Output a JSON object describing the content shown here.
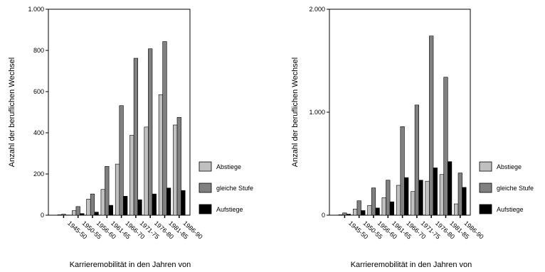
{
  "chart_data": [
    {
      "type": "bar",
      "ylabel": "Anzahl der beruflichen Wechsel",
      "xlabel": "Karrieremobilität in den Jahren von",
      "ylim": [
        0,
        1000
      ],
      "yticks": [
        0,
        200,
        400,
        600,
        800,
        1000
      ],
      "ytick_labels": [
        "0",
        "200",
        "400",
        "600",
        "800",
        "1.000"
      ],
      "legend_position": "right",
      "categories": [
        "1945-50",
        "1950-55",
        "1956-60",
        "1961-65",
        "1966-70",
        "1971-75",
        "1976-80",
        "1981-85",
        "1986-90"
      ],
      "series": [
        {
          "name": "Abstiege",
          "color": "#c0c0c0",
          "values": [
            2,
            22,
            78,
            125,
            248,
            388,
            428,
            585,
            438
          ]
        },
        {
          "name": "gleiche Stufe",
          "color": "#808080",
          "values": [
            5,
            42,
            103,
            237,
            532,
            762,
            808,
            843,
            475
          ]
        },
        {
          "name": "Aufstiege",
          "color": "#000000",
          "values": [
            1,
            8,
            15,
            48,
            92,
            75,
            103,
            132,
            120
          ]
        }
      ]
    },
    {
      "type": "bar",
      "ylabel": "Anzahl der beruflichen Wechsel",
      "xlabel": "Karrieremobilität in den Jahren von",
      "ylim": [
        0,
        2000
      ],
      "yticks": [
        0,
        1000,
        2000
      ],
      "ytick_labels": [
        "0",
        "1.000",
        "2.000"
      ],
      "legend_position": "right",
      "categories": [
        "1945-50",
        "1950-55",
        "1956-60",
        "1961-65",
        "1966-70",
        "1971-75",
        "1976-80",
        "1981-85",
        "1986-90"
      ],
      "series": [
        {
          "name": "Abstiege",
          "color": "#c0c0c0",
          "values": [
            5,
            60,
            95,
            170,
            290,
            230,
            330,
            395,
            110
          ]
        },
        {
          "name": "gleiche Stufe",
          "color": "#808080",
          "values": [
            22,
            140,
            265,
            340,
            860,
            1070,
            1740,
            1340,
            410
          ]
        },
        {
          "name": "Aufstiege",
          "color": "#000000",
          "values": [
            10,
            45,
            70,
            130,
            365,
            340,
            460,
            520,
            270
          ]
        }
      ]
    }
  ]
}
